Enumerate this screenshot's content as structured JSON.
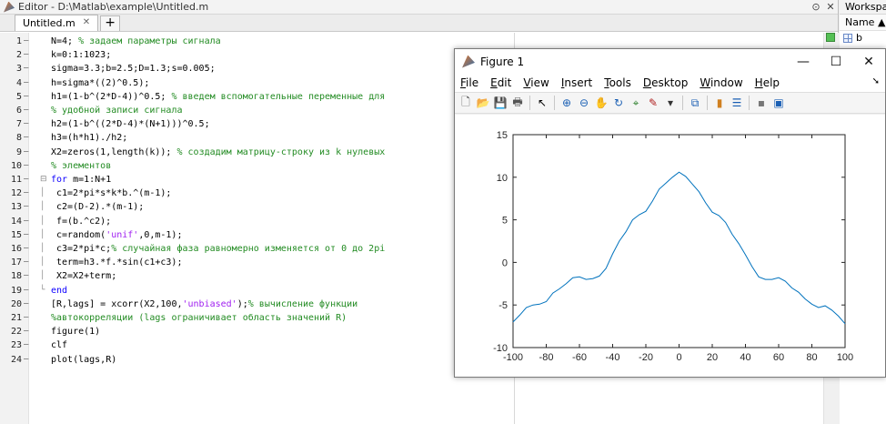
{
  "editor": {
    "title": "Editor - D:\\Matlab\\example\\Untitled.m",
    "tab_label": "Untitled.m",
    "tab_close": "✕",
    "tab_add": "+",
    "title_btn_down": "⊙",
    "title_btn_close": "✕"
  },
  "code_lines": [
    {
      "n": "1",
      "segs": [
        [
          "N=4; ",
          "n"
        ],
        [
          "% задаем параметры сигнала",
          "c"
        ]
      ]
    },
    {
      "n": "2",
      "segs": [
        [
          "k=0:1:1023;",
          "n"
        ]
      ]
    },
    {
      "n": "3",
      "segs": [
        [
          "sigma=3.3;b=2.5;D=1.3;s=0.005;",
          "n"
        ]
      ]
    },
    {
      "n": "4",
      "segs": [
        [
          "h=sigma*((2)^0.5);",
          "n"
        ]
      ]
    },
    {
      "n": "5",
      "segs": [
        [
          "h1=(1-b^(2*D-4))^0.5; ",
          "n"
        ],
        [
          "% введем вспомогательные переменные для",
          "c"
        ]
      ]
    },
    {
      "n": "6",
      "segs": [
        [
          "% удобной записи сигнала",
          "c"
        ]
      ]
    },
    {
      "n": "7",
      "segs": [
        [
          "h2=(1-b^((2*D-4)*(N+1)))^0.5;",
          "n"
        ]
      ]
    },
    {
      "n": "8",
      "segs": [
        [
          "h3=(h*h1)./h2;",
          "n"
        ]
      ]
    },
    {
      "n": "9",
      "segs": [
        [
          "X2=zeros(1,length(k)); ",
          "n"
        ],
        [
          "% создадим матрицу-строку из k нулевых",
          "c"
        ]
      ]
    },
    {
      "n": "10",
      "segs": [
        [
          "% элементов",
          "c"
        ]
      ]
    },
    {
      "n": "11",
      "segs": [
        [
          "for",
          "k"
        ],
        [
          " m=1:N+1",
          "n"
        ]
      ]
    },
    {
      "n": "12",
      "segs": [
        [
          "c1=2*pi*s*k*b.^(m-1);",
          "n"
        ]
      ]
    },
    {
      "n": "13",
      "segs": [
        [
          "c2=(D-2).*(m-1);",
          "n"
        ]
      ]
    },
    {
      "n": "14",
      "segs": [
        [
          "f=(b.^c2);",
          "n"
        ]
      ]
    },
    {
      "n": "15",
      "segs": [
        [
          "c=random(",
          "n"
        ],
        [
          "'unif'",
          "s"
        ],
        [
          ",0,m-1);",
          "n"
        ]
      ]
    },
    {
      "n": "16",
      "segs": [
        [
          "c3=2*pi*c;",
          "n"
        ],
        [
          "% случайная фаза равномерно изменяется от 0 до 2pi",
          "c"
        ]
      ]
    },
    {
      "n": "17",
      "segs": [
        [
          "term=h3.*f.*sin(c1+c3);",
          "n"
        ]
      ]
    },
    {
      "n": "18",
      "segs": [
        [
          "X2=X2+term;",
          "n"
        ]
      ]
    },
    {
      "n": "19",
      "segs": [
        [
          "end",
          "k"
        ]
      ]
    },
    {
      "n": "20",
      "segs": [
        [
          "[R,lags] = xcorr(X2,100,",
          "n"
        ],
        [
          "'unbiased'",
          "s"
        ],
        [
          ");",
          "n"
        ],
        [
          "% вычисление функции",
          "c"
        ]
      ]
    },
    {
      "n": "21",
      "segs": [
        [
          "%автокорреляции (lags ограничивает область значений R)",
          "c"
        ]
      ]
    },
    {
      "n": "22",
      "segs": [
        [
          "figure(1)",
          "n"
        ]
      ]
    },
    {
      "n": "23",
      "segs": [
        [
          "clf",
          "n"
        ]
      ]
    },
    {
      "n": "24",
      "segs": [
        [
          "plot(lags,R)",
          "n"
        ]
      ]
    }
  ],
  "workspace": {
    "title": "Workspace",
    "column_header": "Name ▲",
    "var_name": "b"
  },
  "figure": {
    "title": "Figure 1",
    "min_glyph": "—",
    "max_glyph": "☐",
    "close_glyph": "✕",
    "menus": [
      {
        "u": "F",
        "rest": "ile"
      },
      {
        "u": "E",
        "rest": "dit"
      },
      {
        "u": "V",
        "rest": "iew"
      },
      {
        "u": "I",
        "rest": "nsert"
      },
      {
        "u": "T",
        "rest": "ools"
      },
      {
        "u": "D",
        "rest": "esktop"
      },
      {
        "u": "W",
        "rest": "indow"
      },
      {
        "u": "H",
        "rest": "elp"
      }
    ],
    "menu_arrow": "➘",
    "toolbar_icons": [
      "new-figure-icon",
      "open-file-icon",
      "save-icon",
      "print-icon",
      "|",
      "pointer-icon",
      "|",
      "zoom-in-icon",
      "zoom-out-icon",
      "pan-icon",
      "rotate-icon",
      "data-cursor-icon",
      "brush-icon",
      "dropdown-icon",
      "|",
      "link-plot-icon",
      "|",
      "colorbar-icon",
      "legend-icon",
      "|",
      "hide-plot-tools-icon",
      "show-plot-tools-icon"
    ],
    "toolbar_glyphs": [
      "🗋",
      "📂",
      "💾",
      "🖶",
      "|",
      "↖",
      "|",
      "⊕",
      "⊖",
      "✋",
      "↻",
      "⌖",
      "✎",
      "▾",
      "|",
      "⧉",
      "|",
      "▮",
      "☰",
      "|",
      "▪",
      "▣"
    ]
  },
  "chart_data": {
    "type": "line",
    "title": "",
    "xlabel": "",
    "ylabel": "",
    "xlim": [
      -100,
      100
    ],
    "ylim": [
      -10,
      15
    ],
    "xticks": [
      -100,
      -80,
      -60,
      -40,
      -20,
      0,
      20,
      40,
      60,
      80,
      100
    ],
    "yticks": [
      -10,
      -5,
      0,
      5,
      10,
      15
    ],
    "grid": false,
    "color": "#0072bd",
    "series": [
      {
        "x": [
          -100,
          -96,
          -92,
          -88,
          -84,
          -80,
          -76,
          -72,
          -68,
          -64,
          -60,
          -56,
          -52,
          -48,
          -44,
          -40,
          -36,
          -32,
          -28,
          -24,
          -20,
          -16,
          -12,
          -8,
          -4,
          0,
          4,
          8,
          12,
          16,
          20,
          24,
          28,
          32,
          36,
          40,
          44,
          48,
          52,
          56,
          60,
          64,
          68,
          72,
          76,
          80,
          84,
          88,
          92,
          96,
          100
        ],
        "y": [
          -7.0,
          -6.2,
          -5.3,
          -5.0,
          -4.9,
          -4.6,
          -3.6,
          -3.1,
          -2.5,
          -1.8,
          -1.7,
          -2.0,
          -1.9,
          -1.6,
          -0.7,
          1.0,
          2.5,
          3.6,
          5.0,
          5.6,
          6.0,
          7.2,
          8.6,
          9.3,
          10.0,
          10.6,
          10.1,
          9.2,
          8.3,
          7.0,
          5.9,
          5.5,
          4.7,
          3.3,
          2.2,
          0.9,
          -0.5,
          -1.7,
          -2.0,
          -2.0,
          -1.8,
          -2.2,
          -3.0,
          -3.5,
          -4.3,
          -4.9,
          -5.3,
          -5.1,
          -5.6,
          -6.3,
          -7.2
        ]
      }
    ]
  }
}
